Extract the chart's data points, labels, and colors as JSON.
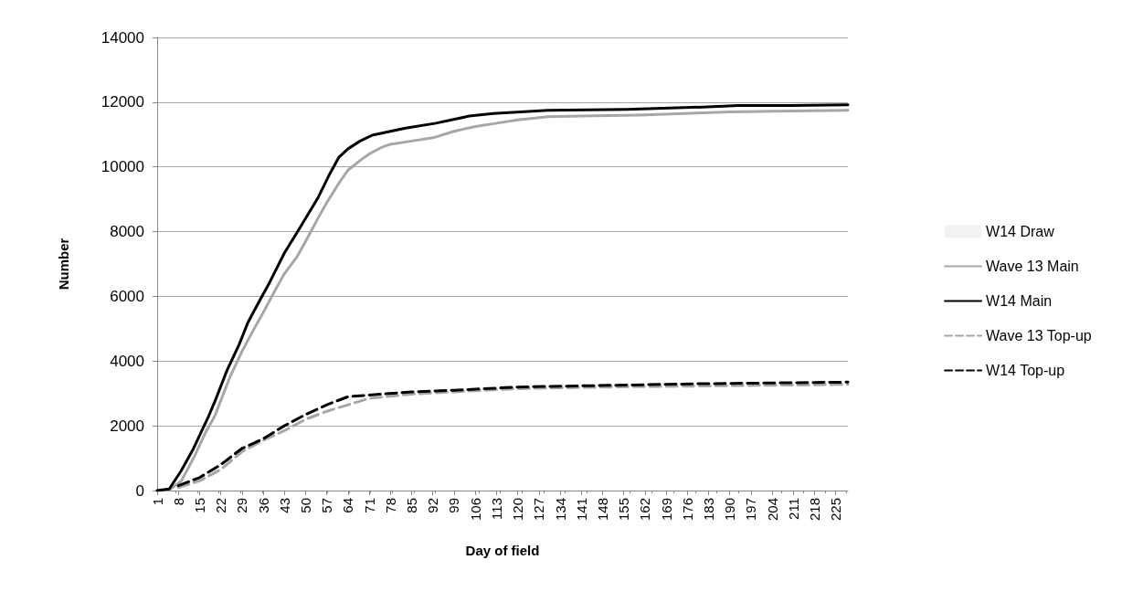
{
  "chart_data": {
    "type": "line",
    "xlabel": "Day of field",
    "ylabel": "Number",
    "xlim": [
      1,
      229
    ],
    "xticks": [
      1,
      8,
      15,
      22,
      29,
      36,
      43,
      50,
      57,
      64,
      71,
      78,
      85,
      92,
      99,
      106,
      113,
      120,
      127,
      134,
      141,
      148,
      155,
      162,
      169,
      176,
      183,
      190,
      197,
      204,
      211,
      218,
      225
    ],
    "ylim": [
      0,
      14000
    ],
    "yticks": [
      0,
      2000,
      4000,
      6000,
      8000,
      10000,
      12000,
      14000
    ],
    "grid": "y",
    "legend": "right",
    "marker": "none",
    "series": [
      {
        "name": "W14 Draw",
        "type": "area",
        "color": "#f2f2f2",
        "values": [
          null
        ]
      },
      {
        "name": "Wave 13 Main",
        "color": "#a6a6a6",
        "line_style": "solid",
        "x": [
          1,
          5,
          9,
          13,
          17,
          20,
          25,
          29,
          33,
          36,
          40,
          43,
          47,
          50,
          54,
          57,
          61,
          64,
          68,
          71,
          75,
          78,
          85,
          92,
          99,
          106,
          113,
          120,
          130,
          145,
          160,
          175,
          190,
          205,
          229
        ],
        "values": [
          0,
          20,
          300,
          1000,
          1800,
          2300,
          3500,
          4300,
          5000,
          5500,
          6200,
          6700,
          7200,
          7700,
          8400,
          8900,
          9500,
          9900,
          10200,
          10400,
          10600,
          10700,
          10800,
          10900,
          11100,
          11250,
          11350,
          11450,
          11550,
          11580,
          11600,
          11650,
          11700,
          11720,
          11750
        ]
      },
      {
        "name": "W14 Main",
        "color": "#000000",
        "line_style": "solid",
        "x": [
          1,
          5,
          9,
          13,
          16,
          18,
          20,
          24,
          28,
          31,
          35,
          38,
          43,
          48,
          54,
          58,
          61,
          64,
          68,
          72,
          78,
          83,
          93,
          104,
          112,
          130,
          156,
          181,
          193,
          210,
          229
        ],
        "values": [
          0,
          50,
          620,
          1300,
          1900,
          2300,
          2740,
          3700,
          4500,
          5200,
          5900,
          6410,
          7340,
          8100,
          9030,
          9790,
          10300,
          10560,
          10800,
          10980,
          11100,
          11200,
          11350,
          11570,
          11650,
          11750,
          11780,
          11850,
          11900,
          11900,
          11920
        ]
      },
      {
        "name": "Wave 13 Top-up",
        "color": "#a6a6a6",
        "line_style": "dashed",
        "x": [
          8,
          15,
          22,
          29,
          36,
          43,
          50,
          57,
          64,
          71,
          85,
          99,
          120,
          150,
          180,
          229
        ],
        "values": [
          100,
          300,
          650,
          1200,
          1550,
          1850,
          2200,
          2450,
          2650,
          2850,
          2980,
          3050,
          3150,
          3200,
          3230,
          3280
        ]
      },
      {
        "name": "W14 Top-up",
        "color": "#000000",
        "line_style": "dashed",
        "x": [
          8,
          15,
          22,
          29,
          36,
          43,
          50,
          57,
          64,
          71,
          85,
          99,
          120,
          150,
          180,
          229
        ],
        "values": [
          150,
          400,
          800,
          1300,
          1600,
          2000,
          2350,
          2650,
          2900,
          2950,
          3050,
          3100,
          3200,
          3250,
          3300,
          3350
        ]
      }
    ]
  }
}
